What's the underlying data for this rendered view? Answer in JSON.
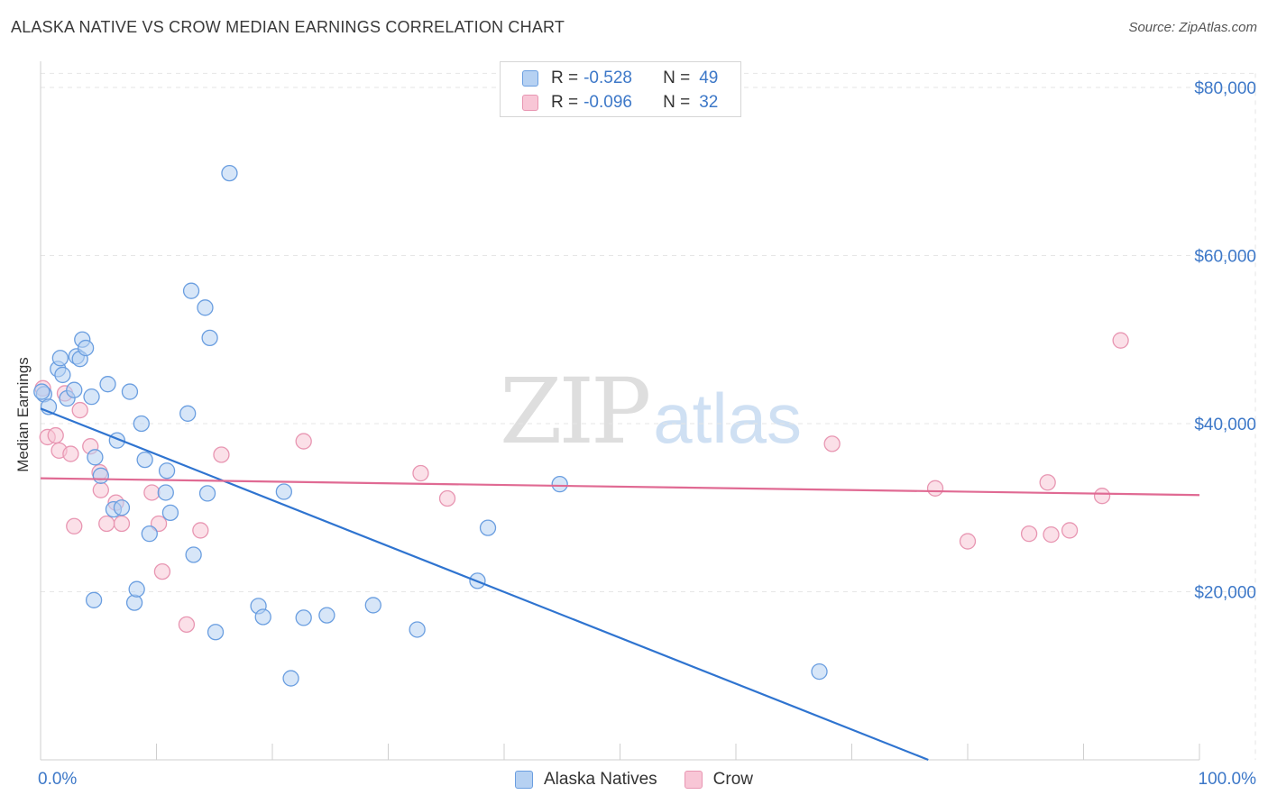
{
  "header": {
    "title": "ALASKA NATIVE VS CROW MEDIAN EARNINGS CORRELATION CHART",
    "source": "Source: ZipAtlas.com"
  },
  "watermark": {
    "zip": "ZIP",
    "atlas": "atlas"
  },
  "legend": {
    "rows": [
      {
        "r_label": "R =",
        "r_value": "-0.528",
        "n_label": "N =",
        "n_value": "49"
      },
      {
        "r_label": "R =",
        "r_value": "-0.096",
        "n_label": "N =",
        "n_value": "32"
      }
    ]
  },
  "chart_data": {
    "type": "scatter",
    "title": "ALASKA NATIVE VS CROW MEDIAN EARNINGS CORRELATION CHART",
    "xlabel": "",
    "ylabel": "Median Earnings",
    "xlim": [
      0,
      100
    ],
    "ylim": [
      0,
      82000
    ],
    "x_tick_labels": [
      "0.0%",
      "100.0%"
    ],
    "y_ticks": [
      20000,
      40000,
      60000,
      80000
    ],
    "y_tick_labels": [
      "$20,000",
      "$40,000",
      "$60,000",
      "$80,000"
    ],
    "grid": true,
    "legend_position": "top-center",
    "colors": {
      "alaska_fill": "#b6d1f2",
      "alaska_stroke": "#6a9ee0",
      "alaska_line": "#2f74d0",
      "crow_fill": "#f8c6d6",
      "crow_stroke": "#e896b2",
      "crow_line": "#e06a93"
    },
    "series": [
      {
        "name": "Alaska Natives",
        "trend": {
          "x0": 0,
          "y0": 41800,
          "x1": 76.6,
          "y1": 0
        },
        "points": [
          [
            0.3,
            43500
          ],
          [
            0.7,
            42000
          ],
          [
            1.5,
            46500
          ],
          [
            1.7,
            47800
          ],
          [
            1.9,
            45800
          ],
          [
            2.3,
            43000
          ],
          [
            2.9,
            44000
          ],
          [
            3.1,
            48000
          ],
          [
            3.4,
            47700
          ],
          [
            3.6,
            50000
          ],
          [
            3.9,
            49000
          ],
          [
            4.4,
            43200
          ],
          [
            4.6,
            19000
          ],
          [
            4.7,
            36000
          ],
          [
            5.2,
            33800
          ],
          [
            5.8,
            44700
          ],
          [
            6.3,
            29800
          ],
          [
            6.6,
            38000
          ],
          [
            7.0,
            30000
          ],
          [
            7.7,
            43800
          ],
          [
            8.1,
            18700
          ],
          [
            8.3,
            20300
          ],
          [
            8.7,
            40000
          ],
          [
            9.0,
            35700
          ],
          [
            9.4,
            26900
          ],
          [
            10.8,
            31800
          ],
          [
            10.9,
            34400
          ],
          [
            11.2,
            29400
          ],
          [
            12.7,
            41200
          ],
          [
            13.0,
            55800
          ],
          [
            13.2,
            24400
          ],
          [
            14.2,
            53800
          ],
          [
            14.4,
            31700
          ],
          [
            14.6,
            50200
          ],
          [
            15.1,
            15200
          ],
          [
            16.3,
            69800
          ],
          [
            18.8,
            18300
          ],
          [
            19.2,
            17000
          ],
          [
            21.0,
            31900
          ],
          [
            21.6,
            9700
          ],
          [
            22.7,
            16900
          ],
          [
            24.7,
            17200
          ],
          [
            28.7,
            18400
          ],
          [
            32.5,
            15500
          ],
          [
            37.7,
            21300
          ],
          [
            38.6,
            27600
          ],
          [
            44.8,
            32800
          ],
          [
            67.2,
            10500
          ],
          [
            0.1,
            43800
          ]
        ]
      },
      {
        "name": "Crow",
        "trend": {
          "x0": 0,
          "y0": 33500,
          "x1": 100,
          "y1": 31500
        },
        "points": [
          [
            0.2,
            44200
          ],
          [
            0.6,
            38400
          ],
          [
            1.3,
            38600
          ],
          [
            1.6,
            36800
          ],
          [
            2.1,
            43600
          ],
          [
            2.6,
            36400
          ],
          [
            2.9,
            27800
          ],
          [
            3.4,
            41600
          ],
          [
            4.3,
            37300
          ],
          [
            5.1,
            34200
          ],
          [
            5.2,
            32100
          ],
          [
            5.7,
            28100
          ],
          [
            6.5,
            30600
          ],
          [
            7.0,
            28100
          ],
          [
            9.6,
            31800
          ],
          [
            10.2,
            28100
          ],
          [
            10.5,
            22400
          ],
          [
            12.6,
            16100
          ],
          [
            13.8,
            27300
          ],
          [
            15.6,
            36300
          ],
          [
            22.7,
            37900
          ],
          [
            32.8,
            34100
          ],
          [
            35.1,
            31100
          ],
          [
            68.3,
            37600
          ],
          [
            77.2,
            32300
          ],
          [
            80.0,
            26000
          ],
          [
            85.3,
            26900
          ],
          [
            86.9,
            33000
          ],
          [
            87.2,
            26800
          ],
          [
            88.8,
            27300
          ],
          [
            91.6,
            31400
          ],
          [
            93.2,
            49900
          ]
        ]
      }
    ]
  }
}
